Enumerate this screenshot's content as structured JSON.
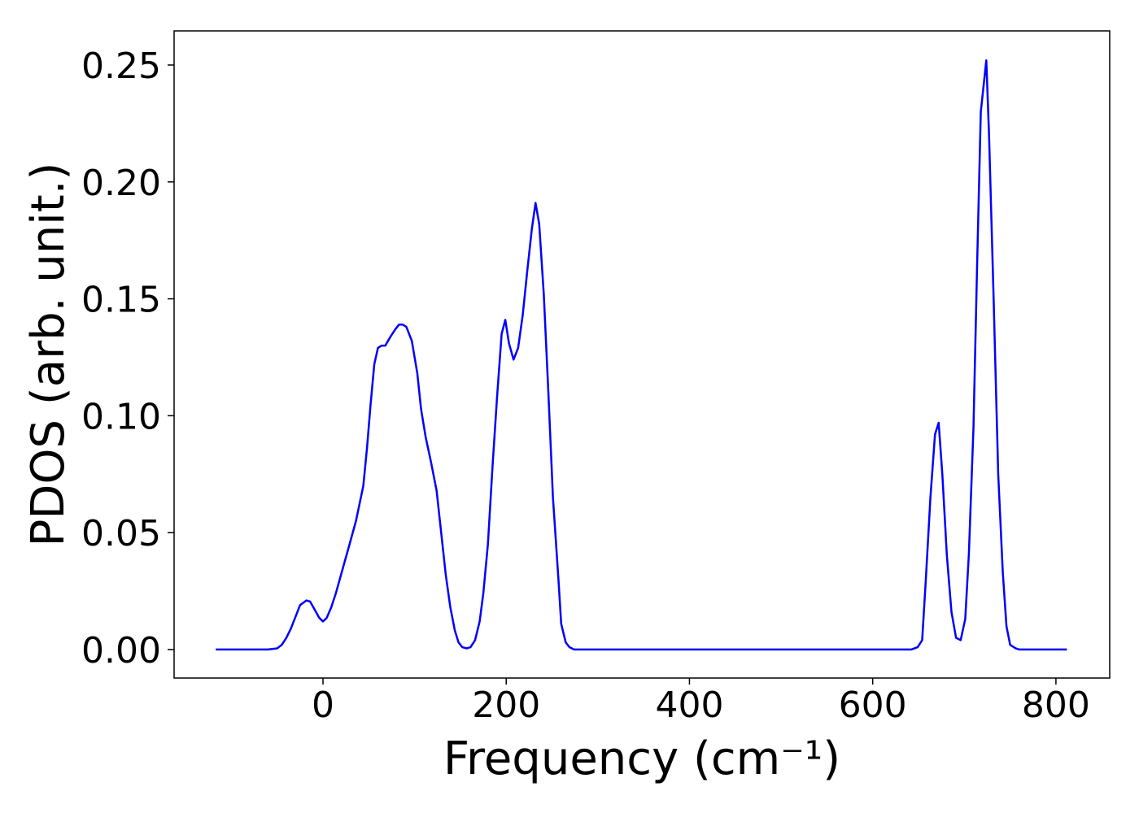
{
  "chart_data": {
    "type": "line",
    "x_label": "Frequency (cm⁻¹)",
    "y_label": "PDOS (arb. unit.)",
    "x": [
      -117,
      -60,
      -50,
      -45,
      -40,
      -35,
      -30,
      -25,
      -18,
      -14,
      -9,
      -4,
      0,
      4,
      9,
      14,
      19,
      24,
      29,
      36,
      44,
      48,
      52,
      56,
      60,
      64,
      68,
      74,
      79,
      83,
      87,
      91,
      97,
      103,
      107,
      112,
      118,
      124,
      129,
      134,
      139,
      144,
      148,
      152,
      157,
      161,
      166,
      171,
      175,
      180,
      185,
      190,
      195,
      199,
      203,
      208,
      213,
      218,
      223,
      228,
      232,
      236,
      241,
      246,
      251,
      257,
      260,
      265,
      269,
      274,
      642,
      649,
      654,
      658,
      663,
      668,
      672,
      676,
      681,
      686,
      691,
      696,
      701,
      705,
      710,
      714,
      718,
      724,
      727,
      732,
      737,
      742,
      746,
      750,
      756,
      760,
      812
    ],
    "series": [
      {
        "name": "PDOS",
        "color": "#0000ff",
        "values": [
          0,
          0,
          0.0005,
          0.002,
          0.005,
          0.009,
          0.014,
          0.019,
          0.021,
          0.0205,
          0.017,
          0.0135,
          0.012,
          0.0135,
          0.018,
          0.024,
          0.031,
          0.038,
          0.045,
          0.055,
          0.07,
          0.086,
          0.105,
          0.122,
          0.129,
          0.13,
          0.13,
          0.134,
          0.137,
          0.139,
          0.139,
          0.138,
          0.132,
          0.118,
          0.103,
          0.091,
          0.08,
          0.068,
          0.05,
          0.032,
          0.018,
          0.008,
          0.003,
          0.001,
          0.0005,
          0.001,
          0.004,
          0.012,
          0.024,
          0.045,
          0.078,
          0.108,
          0.135,
          0.141,
          0.131,
          0.124,
          0.129,
          0.143,
          0.162,
          0.18,
          0.191,
          0.182,
          0.152,
          0.11,
          0.065,
          0.03,
          0.011,
          0.003,
          0.001,
          0,
          0,
          0.001,
          0.004,
          0.03,
          0.065,
          0.092,
          0.097,
          0.075,
          0.04,
          0.016,
          0.005,
          0.004,
          0.013,
          0.041,
          0.095,
          0.165,
          0.23,
          0.252,
          0.22,
          0.15,
          0.075,
          0.033,
          0.01,
          0.002,
          0.0005,
          0,
          0
        ]
      }
    ],
    "xlim": [
      -162.5,
      858.7
    ],
    "ylim": [
      -0.0122,
      0.2646
    ],
    "xticks": [
      0,
      200,
      400,
      600,
      800
    ],
    "yticks": [
      {
        "value": 0,
        "label": "0.00"
      },
      {
        "value": 0.05,
        "label": "0.05"
      },
      {
        "value": 0.1,
        "label": "0.10"
      },
      {
        "value": 0.15,
        "label": "0.15"
      },
      {
        "value": 0.2,
        "label": "0.20"
      },
      {
        "value": 0.25,
        "label": "0.25"
      }
    ],
    "grid": false
  }
}
